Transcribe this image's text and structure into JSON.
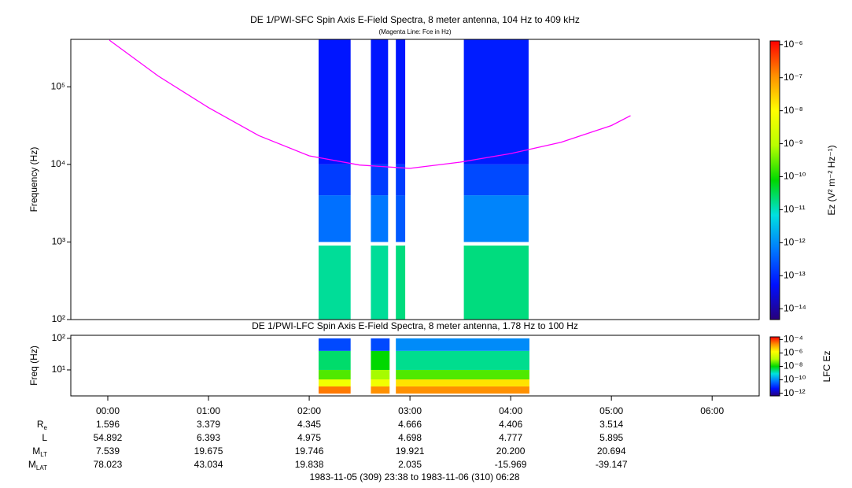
{
  "chart_data": [
    {
      "type": "heatmap",
      "title": "DE 1/PWI-SFC  Spin Axis E-Field Spectra, 8 meter antenna, 104 Hz to 409 kHz",
      "subtitle": "(Magenta Line: Fce in Hz)",
      "y_label": "Frequency (Hz)",
      "xlim": [
        -0.367,
        6.467
      ],
      "ylim": [
        100,
        409000
      ],
      "y_scale": "log",
      "yticks": [
        {
          "value": 100,
          "label": "10²"
        },
        {
          "value": 1000,
          "label": "10³"
        },
        {
          "value": 10000,
          "label": "10⁴"
        },
        {
          "value": 100000,
          "label": "10⁵"
        }
      ],
      "x_edges": [
        2.093,
        2.411,
        2.612,
        2.783,
        2.86,
        2.953,
        3.535,
        4.178
      ],
      "y_edges": [
        100,
        900,
        1000,
        4000,
        10000,
        409000
      ],
      "z": [
        [
          1.5e-11,
          null,
          1.5e-11,
          null,
          2e-11,
          null,
          2e-11
        ],
        [
          null,
          null,
          null,
          null,
          null,
          null,
          null
        ],
        [
          5e-13,
          null,
          6e-13,
          null,
          3e-13,
          null,
          8e-13
        ],
        [
          1.5e-13,
          null,
          1.5e-13,
          null,
          1.5e-13,
          null,
          2e-13
        ],
        [
          6e-14,
          null,
          6e-14,
          null,
          6e-14,
          null,
          7e-14
        ]
      ],
      "colorbar_label": "Ez (V² m⁻² Hz⁻¹)",
      "zlim": [
        4.7e-15,
        1.3e-06
      ],
      "z_scale": "log",
      "zticks": [
        {
          "value": 1e-06,
          "label": "10⁻⁶"
        },
        {
          "value": 1e-07,
          "label": "10⁻⁷"
        },
        {
          "value": 1e-08,
          "label": "10⁻⁸"
        },
        {
          "value": 1e-09,
          "label": "10⁻⁹"
        },
        {
          "value": 1e-10,
          "label": "10⁻¹⁰"
        },
        {
          "value": 1e-11,
          "label": "10⁻¹¹"
        },
        {
          "value": 1e-12,
          "label": "10⁻¹²"
        },
        {
          "value": 1e-13,
          "label": "10⁻¹³"
        },
        {
          "value": 1e-14,
          "label": "10⁻¹⁴"
        }
      ],
      "colormap": [
        "#28007a",
        "#0010ff",
        "#0078ff",
        "#00e0e0",
        "#00d800",
        "#b8ff00",
        "#ffff00",
        "#ff9000",
        "#ff0000"
      ],
      "series": [
        {
          "color": "#ff00ff",
          "x": [
            0.016,
            0.5,
            1.0,
            1.5,
            2.0,
            2.5,
            3.0,
            3.5,
            4.0,
            4.5,
            5.0,
            5.19
          ],
          "values": [
            400000,
            138000,
            54000,
            23500,
            12900,
            9800,
            8900,
            10700,
            13800,
            19300,
            31700,
            42500
          ]
        }
      ]
    },
    {
      "type": "heatmap",
      "title": "DE 1/PWI-LFC  Spin Axis E-Field Spectra, 8 meter antenna, 1.78 Hz to 100 Hz",
      "y_label": "Freq (Hz)",
      "xlim": [
        -0.367,
        6.467
      ],
      "xticks": [
        {
          "value": 0,
          "label": "00:00"
        },
        {
          "value": 1,
          "label": "01:00"
        },
        {
          "value": 2,
          "label": "02:00"
        },
        {
          "value": 3,
          "label": "03:00"
        },
        {
          "value": 4,
          "label": "04:00"
        },
        {
          "value": 5,
          "label": "05:00"
        },
        {
          "value": 6,
          "label": "06:00"
        }
      ],
      "ylim": [
        1.5,
        125
      ],
      "y_scale": "log",
      "yticks": [
        {
          "value": 10,
          "label": "10¹"
        },
        {
          "value": 100,
          "label": "10²"
        }
      ],
      "x_edges": [
        2.093,
        2.411,
        2.612,
        2.798,
        2.86,
        4.186
      ],
      "y_edges": [
        1.78,
        3,
        5,
        10,
        40,
        100
      ],
      "z": [
        [
          3e-05,
          null,
          2e-05,
          null,
          2e-05
        ],
        [
          1e-06,
          null,
          1e-06,
          null,
          3e-06
        ],
        [
          3e-08,
          null,
          1e-07,
          null,
          3e-08
        ],
        [
          3e-09,
          null,
          1e-08,
          null,
          2e-09
        ],
        [
          2e-11,
          null,
          2e-11,
          null,
          1e-10
        ]
      ],
      "colorbar_label": "LFC Ez",
      "zlim": [
        4e-13,
        0.00025
      ],
      "z_scale": "log",
      "zticks": [
        {
          "value": 0.0001,
          "label": "10⁻⁴"
        },
        {
          "value": 1e-06,
          "label": "10⁻⁶"
        },
        {
          "value": 1e-08,
          "label": "10⁻⁸"
        },
        {
          "value": 1e-10,
          "label": "10⁻¹⁰"
        },
        {
          "value": 1e-12,
          "label": "10⁻¹²"
        }
      ],
      "colormap": [
        "#28007a",
        "#0010ff",
        "#0078ff",
        "#00e0e0",
        "#00d800",
        "#b8ff00",
        "#ffff00",
        "#ff9000",
        "#ff0000"
      ]
    }
  ],
  "ephemeris": {
    "labels": [
      {
        "main": "R",
        "sub": "e"
      },
      {
        "main": "L"
      },
      {
        "main": "M",
        "sub": "LT"
      },
      {
        "main": "M",
        "sub": "LAT"
      }
    ],
    "rows": [
      [
        "1.596",
        "3.379",
        "4.345",
        "4.666",
        "4.406",
        "3.514"
      ],
      [
        "54.892",
        "6.393",
        "4.975",
        "4.698",
        "4.777",
        "5.895"
      ],
      [
        "7.539",
        "19.675",
        "19.746",
        "19.921",
        "20.200",
        "20.694"
      ],
      [
        "78.023",
        "43.034",
        "19.838",
        "2.035",
        "-15.969",
        "-39.147"
      ]
    ]
  },
  "time_range": "1983-11-05 (309) 23:38 to 1983-11-06 (310) 06:28"
}
